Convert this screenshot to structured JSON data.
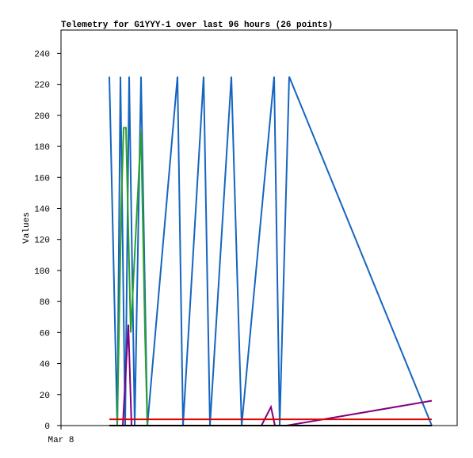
{
  "chart_data": {
    "type": "line",
    "title": "Telemetry for G1YYY-1 over last 96 hours (26 points)",
    "y_label": "Values",
    "xlim": [
      0,
      100
    ],
    "xticks": [
      {
        "value": 0,
        "label": "Mar 8"
      }
    ],
    "ylim": [
      0,
      255
    ],
    "yticks": [
      0,
      20,
      40,
      60,
      80,
      100,
      120,
      140,
      160,
      180,
      200,
      220,
      240
    ],
    "series": [
      {
        "color": "#1565c0",
        "x": [
          12.2,
          14.2,
          15,
          16.2,
          17.2,
          18.6,
          20.2,
          21.8,
          29.4,
          30.8,
          36,
          37.6,
          43,
          45.6,
          53.8,
          55.2,
          57.6,
          93.6
        ],
        "values": [
          225,
          0,
          225,
          0,
          225,
          0,
          225,
          0,
          225,
          0,
          225,
          0,
          225,
          0,
          225,
          0,
          225,
          0
        ]
      },
      {
        "color": "#2ca02c",
        "x": [
          14.2,
          15.2,
          15.8,
          16.4,
          17.6,
          20.2,
          21.2,
          21.8
        ],
        "values": [
          0,
          140,
          192,
          192,
          60,
          190,
          60,
          0
        ]
      },
      {
        "color": "#800080",
        "x": [
          15.6,
          17,
          17.8,
          50.6,
          53,
          54,
          57,
          93.6
        ],
        "values": [
          0,
          65,
          0,
          0,
          12,
          0,
          0,
          16
        ]
      },
      {
        "color": "#e00000",
        "x": [
          12.2,
          93.6
        ],
        "values": [
          4,
          4
        ]
      },
      {
        "color": "#000000",
        "x": [
          12.2,
          93.6
        ],
        "values": [
          0,
          0
        ]
      }
    ]
  }
}
